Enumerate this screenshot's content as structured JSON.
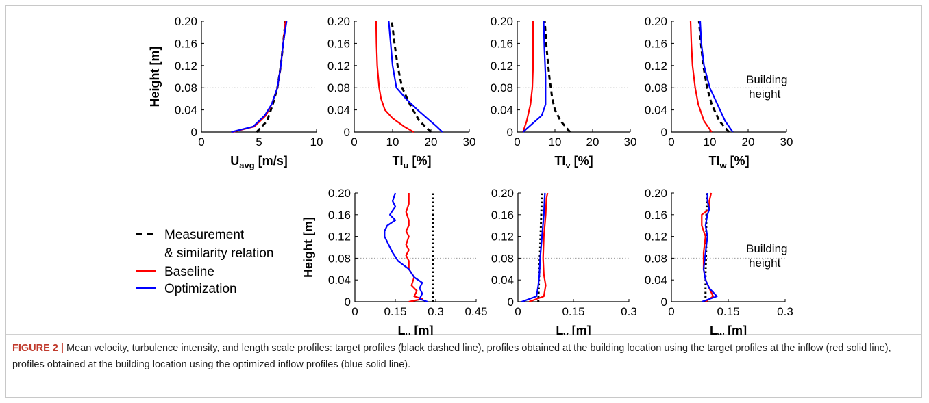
{
  "figure": {
    "caption_label": "FIGURE 2 |",
    "caption_text": " Mean velocity, turbulence intensity, and length scale profiles: target profiles (black dashed line), profiles obtained at the building location using the target profiles at the inflow (red solid line), profiles obtained at the building location using the optimized inflow profiles (blue solid line)."
  },
  "legend": [
    {
      "label": "Measurement",
      "label2": "& similarity relation",
      "color": "#000000",
      "style": "dashed"
    },
    {
      "label": "Baseline",
      "color": "#ff0000",
      "style": "solid"
    },
    {
      "label": "Optimization",
      "color": "#0000ff",
      "style": "solid"
    }
  ],
  "annotation": {
    "line1": "Building",
    "line2": "height",
    "building_height": 0.08
  },
  "colors": {
    "measurement": "#000000",
    "baseline": "#ff0000",
    "optimization": "#0000ff",
    "reference": "#999999"
  },
  "chart_data": [
    {
      "id": "u_avg",
      "type": "line",
      "xlabel": "U",
      "xlabel_sub": "avg",
      "xlabel_unit": " [m/s]",
      "ylabel": "Height [m]",
      "xlim": [
        0,
        10
      ],
      "ylim": [
        0,
        0.2
      ],
      "xticks": [
        "0",
        "5",
        "10"
      ],
      "xtick_values": [
        0,
        5,
        10
      ],
      "yticks": [
        "0",
        "0.04",
        "0.08",
        "0.12",
        "0.16",
        "0.20"
      ],
      "ytick_values": [
        0,
        0.04,
        0.08,
        0.12,
        0.16,
        0.2
      ],
      "series": [
        {
          "name": "Measurement & similarity relation",
          "style": "dashed",
          "x": [
            4.8,
            5.7,
            6.2,
            6.6,
            6.9,
            7.1,
            7.3
          ],
          "y": [
            0,
            0.02,
            0.05,
            0.08,
            0.12,
            0.16,
            0.2
          ]
        },
        {
          "name": "Baseline",
          "style": "solid",
          "x": [
            2.7,
            4.6,
            5.6,
            6.1,
            6.6,
            6.9,
            7.1,
            7.3
          ],
          "y": [
            0,
            0.01,
            0.03,
            0.05,
            0.08,
            0.12,
            0.16,
            0.2
          ]
        },
        {
          "name": "Optimization",
          "style": "solid",
          "x": [
            2.6,
            4.5,
            5.5,
            6.1,
            6.6,
            6.9,
            7.1,
            7.4
          ],
          "y": [
            0,
            0.01,
            0.03,
            0.05,
            0.08,
            0.12,
            0.16,
            0.2
          ]
        }
      ]
    },
    {
      "id": "ti_u",
      "type": "line",
      "xlabel": "TI",
      "xlabel_sub": "u",
      "xlabel_unit": " [%]",
      "ylabel": "",
      "xlim": [
        0,
        30
      ],
      "ylim": [
        0,
        0.2
      ],
      "xticks": [
        "0",
        "10",
        "20",
        "30"
      ],
      "xtick_values": [
        0,
        10,
        20,
        30
      ],
      "yticks": [
        "0",
        "0.04",
        "0.08",
        "0.12",
        "0.16",
        "0.20"
      ],
      "ytick_values": [
        0,
        0.04,
        0.08,
        0.12,
        0.16,
        0.2
      ],
      "series": [
        {
          "name": "Measurement & similarity relation",
          "style": "dashed",
          "x": [
            20,
            17,
            14.5,
            12.5,
            11.3,
            10.5,
            9.8
          ],
          "y": [
            0,
            0.02,
            0.05,
            0.08,
            0.12,
            0.16,
            0.2
          ]
        },
        {
          "name": "Baseline",
          "style": "solid",
          "x": [
            15.5,
            13,
            10,
            8,
            7,
            6.5,
            6,
            5.8,
            5.7
          ],
          "y": [
            0,
            0.01,
            0.025,
            0.04,
            0.06,
            0.08,
            0.12,
            0.16,
            0.2
          ]
        },
        {
          "name": "Optimization",
          "style": "solid",
          "x": [
            23,
            21.5,
            19,
            16.5,
            13.5,
            11,
            10,
            9.5,
            9
          ],
          "y": [
            0,
            0.01,
            0.025,
            0.04,
            0.06,
            0.08,
            0.12,
            0.16,
            0.2
          ]
        }
      ]
    },
    {
      "id": "ti_v",
      "type": "line",
      "xlabel": "TI",
      "xlabel_sub": "v",
      "xlabel_unit": " [%]",
      "ylabel": "",
      "xlim": [
        0,
        30
      ],
      "ylim": [
        0,
        0.2
      ],
      "xticks": [
        "0",
        "10",
        "20",
        "30"
      ],
      "xtick_values": [
        0,
        10,
        20,
        30
      ],
      "yticks": [
        "0",
        "0.04",
        "0.08",
        "0.12",
        "0.16",
        "0.20"
      ],
      "ytick_values": [
        0,
        0.04,
        0.08,
        0.12,
        0.16,
        0.2
      ],
      "series": [
        {
          "name": "Measurement & similarity relation",
          "style": "dashed",
          "x": [
            14,
            11.5,
            10,
            9.3,
            8.5,
            7.8,
            7.3
          ],
          "y": [
            0,
            0.02,
            0.04,
            0.06,
            0.1,
            0.15,
            0.2
          ]
        },
        {
          "name": "Baseline",
          "style": "solid",
          "x": [
            1.5,
            2.5,
            3.5,
            4.0,
            4.2,
            4.2,
            4.2
          ],
          "y": [
            0,
            0.02,
            0.05,
            0.08,
            0.12,
            0.16,
            0.2
          ]
        },
        {
          "name": "Optimization",
          "style": "solid",
          "x": [
            1.5,
            4,
            6.5,
            7.5,
            7.5,
            7.2,
            7
          ],
          "y": [
            0,
            0.015,
            0.03,
            0.05,
            0.1,
            0.15,
            0.2
          ]
        }
      ]
    },
    {
      "id": "ti_w",
      "type": "line",
      "xlabel": "TI",
      "xlabel_sub": "w",
      "xlabel_unit": " [%]",
      "ylabel": "",
      "xlim": [
        0,
        30
      ],
      "ylim": [
        0,
        0.2
      ],
      "xticks": [
        "0",
        "10",
        "20",
        "30"
      ],
      "xtick_values": [
        0,
        10,
        20,
        30
      ],
      "yticks": [
        "0",
        "0.04",
        "0.08",
        "0.12",
        "0.16",
        "0.20"
      ],
      "ytick_values": [
        0,
        0.04,
        0.08,
        0.12,
        0.16,
        0.2
      ],
      "series": [
        {
          "name": "Measurement & similarity relation",
          "style": "dashed",
          "x": [
            15,
            12.5,
            10.5,
            9.3,
            8.3,
            7.7,
            7.2
          ],
          "y": [
            0,
            0.02,
            0.05,
            0.08,
            0.12,
            0.16,
            0.2
          ]
        },
        {
          "name": "Baseline",
          "style": "solid",
          "x": [
            10.5,
            8.5,
            7,
            6.2,
            5.5,
            5.2,
            5
          ],
          "y": [
            0,
            0.02,
            0.05,
            0.08,
            0.12,
            0.16,
            0.2
          ]
        },
        {
          "name": "Optimization",
          "style": "solid",
          "x": [
            16,
            14,
            12,
            10,
            8.5,
            7.8,
            7.5
          ],
          "y": [
            0,
            0.02,
            0.05,
            0.08,
            0.12,
            0.16,
            0.2
          ]
        }
      ]
    },
    {
      "id": "l_u",
      "type": "line",
      "xlabel": "L",
      "xlabel_sub": "u",
      "xlabel_unit": " [m]",
      "ylabel": "Height [m]",
      "xlim": [
        0,
        0.45
      ],
      "ylim": [
        0,
        0.2
      ],
      "xticks": [
        "0",
        "0.15",
        "0.3",
        "0.45"
      ],
      "xtick_values": [
        0,
        0.15,
        0.3,
        0.45
      ],
      "yticks": [
        "0",
        "0.04",
        "0.08",
        "0.12",
        "0.16",
        "0.20"
      ],
      "ytick_values": [
        0,
        0.04,
        0.08,
        0.12,
        0.16,
        0.2
      ],
      "series": [
        {
          "name": "Measurement & similarity relation",
          "style": "dotted",
          "x": [
            0.29,
            0.29
          ],
          "y": [
            0,
            0.2
          ]
        },
        {
          "name": "Baseline",
          "style": "solid",
          "x": [
            0.2,
            0.25,
            0.22,
            0.23,
            0.21,
            0.22,
            0.2,
            0.2,
            0.19,
            0.2,
            0.19,
            0.2,
            0.19,
            0.2,
            0.2,
            0.19,
            0.2,
            0.2
          ],
          "y": [
            0,
            0.005,
            0.01,
            0.02,
            0.03,
            0.045,
            0.06,
            0.075,
            0.085,
            0.095,
            0.105,
            0.12,
            0.13,
            0.14,
            0.15,
            0.165,
            0.18,
            0.2
          ]
        },
        {
          "name": "Optimization",
          "style": "solid",
          "x": [
            0.27,
            0.24,
            0.25,
            0.24,
            0.25,
            0.22,
            0.2,
            0.16,
            0.14,
            0.13,
            0.12,
            0.11,
            0.11,
            0.12,
            0.15,
            0.13,
            0.15,
            0.14,
            0.15
          ],
          "y": [
            0,
            0.005,
            0.015,
            0.025,
            0.035,
            0.045,
            0.06,
            0.075,
            0.09,
            0.1,
            0.11,
            0.12,
            0.13,
            0.14,
            0.15,
            0.16,
            0.175,
            0.185,
            0.2
          ]
        }
      ]
    },
    {
      "id": "l_v",
      "type": "line",
      "xlabel": "L",
      "xlabel_sub": "v",
      "xlabel_unit": " [m]",
      "ylabel": "",
      "xlim": [
        0,
        0.3
      ],
      "ylim": [
        0,
        0.2
      ],
      "xticks": [
        "0",
        "0.15",
        "0.3"
      ],
      "xtick_values": [
        0,
        0.15,
        0.3
      ],
      "yticks": [
        "0",
        "0.04",
        "0.08",
        "0.12",
        "0.16",
        "0.20"
      ],
      "ytick_values": [
        0,
        0.04,
        0.08,
        0.12,
        0.16,
        0.2
      ],
      "series": [
        {
          "name": "Measurement & similarity relation",
          "style": "dotted",
          "x": [
            0.055,
            0.065
          ],
          "y": [
            0,
            0.2
          ]
        },
        {
          "name": "Baseline",
          "style": "solid",
          "x": [
            0.03,
            0.07,
            0.075,
            0.07,
            0.068,
            0.07,
            0.075,
            0.077,
            0.08
          ],
          "y": [
            0,
            0.01,
            0.03,
            0.05,
            0.08,
            0.12,
            0.16,
            0.19,
            0.2
          ]
        },
        {
          "name": "Optimization",
          "style": "solid",
          "x": [
            0.01,
            0.05,
            0.055,
            0.058,
            0.06,
            0.065,
            0.07,
            0.072,
            0.073
          ],
          "y": [
            0,
            0.01,
            0.03,
            0.05,
            0.08,
            0.12,
            0.16,
            0.19,
            0.2
          ]
        }
      ]
    },
    {
      "id": "l_w",
      "type": "line",
      "xlabel": "L",
      "xlabel_sub": "w",
      "xlabel_unit": " [m]",
      "ylabel": "",
      "xlim": [
        0,
        0.3
      ],
      "ylim": [
        0,
        0.2
      ],
      "xticks": [
        "0",
        "0.15",
        "0.3"
      ],
      "xtick_values": [
        0,
        0.15,
        0.3
      ],
      "yticks": [
        "0",
        "0.04",
        "0.08",
        "0.12",
        "0.16",
        "0.20"
      ],
      "ytick_values": [
        0,
        0.04,
        0.08,
        0.12,
        0.16,
        0.2
      ],
      "series": [
        {
          "name": "Measurement & similarity relation",
          "style": "dotted",
          "x": [
            0.09,
            0.09,
            0.092,
            0.092,
            0.094
          ],
          "y": [
            0,
            0.05,
            0.1,
            0.15,
            0.2
          ]
        },
        {
          "name": "Baseline",
          "style": "solid",
          "x": [
            0.09,
            0.11,
            0.1,
            0.09,
            0.085,
            0.085,
            0.09,
            0.08,
            0.08,
            0.1,
            0.1,
            0.105
          ],
          "y": [
            0,
            0.01,
            0.025,
            0.04,
            0.06,
            0.09,
            0.12,
            0.14,
            0.16,
            0.17,
            0.185,
            0.2
          ]
        },
        {
          "name": "Optimization",
          "style": "solid",
          "x": [
            0.08,
            0.12,
            0.1,
            0.09,
            0.085,
            0.09,
            0.095,
            0.09,
            0.095,
            0.1,
            0.095,
            0.095
          ],
          "y": [
            0,
            0.01,
            0.025,
            0.04,
            0.06,
            0.09,
            0.12,
            0.14,
            0.16,
            0.17,
            0.185,
            0.2
          ]
        }
      ]
    }
  ]
}
